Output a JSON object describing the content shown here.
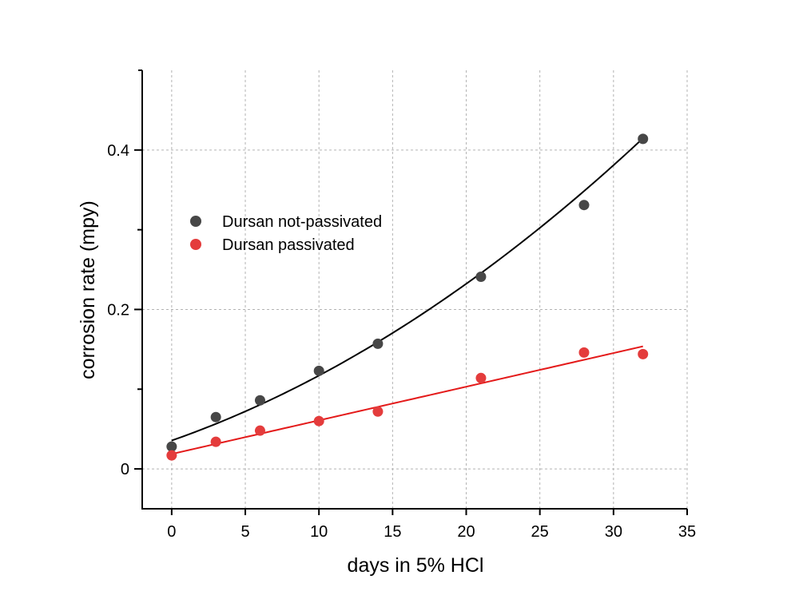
{
  "chart_data": {
    "type": "scatter",
    "title": "",
    "xlabel": "days in 5% HCl",
    "ylabel": "corrosion rate (mpy)",
    "xlim": [
      -2,
      35
    ],
    "ylim": [
      -0.05,
      0.5
    ],
    "x_ticks": [
      0,
      5,
      10,
      15,
      20,
      25,
      30,
      35
    ],
    "x_tick_labels": [
      "0",
      "5",
      "10",
      "15",
      "20",
      "25",
      "30",
      "35"
    ],
    "y_ticks": [
      0,
      0.2,
      0.4
    ],
    "y_tick_labels": [
      "0",
      "0.2",
      "0.4"
    ],
    "y_minor_ticks": [
      0.1,
      0.3
    ],
    "grid": true,
    "legend_position": "upper-left",
    "series": [
      {
        "name": "Dursan not-passivated",
        "color": "#474747",
        "line_color": "#000000",
        "x": [
          0,
          3,
          6,
          10,
          14,
          21,
          28,
          32
        ],
        "values": [
          0.028,
          0.065,
          0.086,
          0.123,
          0.157,
          0.241,
          0.331,
          0.414
        ],
        "fit": {
          "type": "quadratic",
          "coefficients": [
            0.0356,
            0.00647,
            0.000168
          ],
          "x_range": [
            0,
            32
          ]
        }
      },
      {
        "name": "Dursan passivated",
        "color": "#e43c3c",
        "line_color": "#e41a1a",
        "x": [
          0,
          3,
          6,
          10,
          14,
          21,
          28,
          32
        ],
        "values": [
          0.017,
          0.034,
          0.048,
          0.06,
          0.072,
          0.114,
          0.146,
          0.144
        ],
        "fit": {
          "type": "linear",
          "coefficients": [
            0.0187,
            0.00422
          ],
          "x_range": [
            0,
            32
          ]
        }
      }
    ]
  }
}
